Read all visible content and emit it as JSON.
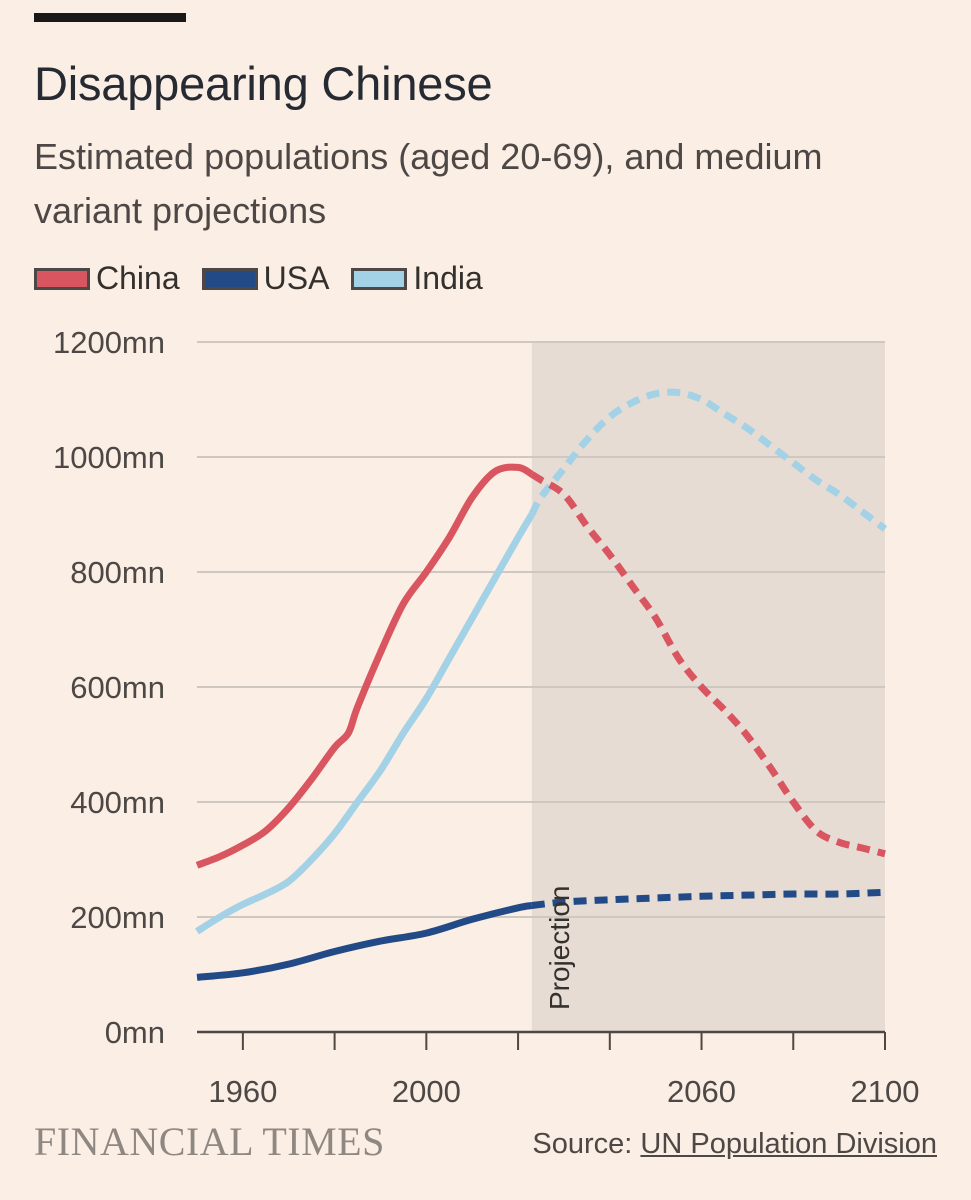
{
  "header": {
    "title": "Disappearing Chinese",
    "subtitle": "Estimated populations (aged 20-69), and medium variant projections"
  },
  "footer": {
    "brand": "FINANCIAL TIMES",
    "source_prefix": "Source: ",
    "source_link": "UN Population Division"
  },
  "colors": {
    "background": "#fbeee4",
    "projection_shade": "#e6dcd4",
    "china": "#d9555f",
    "usa": "#224a86",
    "india": "#a3d1e6",
    "grid": "#cfc8c2",
    "axis": "#4d4845"
  },
  "chart_data": {
    "type": "line",
    "title": "Disappearing Chinese",
    "subtitle": "Estimated populations (aged 20-69), and medium variant projections",
    "xlabel": "",
    "ylabel": "",
    "xlim": [
      1950,
      2100
    ],
    "ylim": [
      0,
      1200
    ],
    "y_ticks": [
      0,
      200,
      400,
      600,
      800,
      1000,
      1200
    ],
    "y_tick_labels": [
      "0mn",
      "200mn",
      "400mn",
      "600mn",
      "800mn",
      "1000mn",
      "1200mn"
    ],
    "x_ticks": [
      1960,
      1980,
      2000,
      2020,
      2040,
      2060,
      2080,
      2100
    ],
    "x_tick_labels": [
      "1960",
      "",
      "2000",
      "",
      "",
      "2060",
      "",
      "2100"
    ],
    "projection_start": 2023,
    "projection_label": "Projection",
    "legend": [
      "China",
      "USA",
      "India"
    ],
    "legend_position": "top-left",
    "grid": true,
    "series": [
      {
        "name": "China",
        "color": "#d9555f",
        "x": [
          1950,
          1955,
          1960,
          1965,
          1970,
          1975,
          1980,
          1983,
          1985,
          1990,
          1995,
          2000,
          2005,
          2010,
          2015,
          2020,
          2023,
          2025,
          2030,
          2035,
          2040,
          2045,
          2050,
          2055,
          2060,
          2065,
          2070,
          2075,
          2080,
          2085,
          2090,
          2095,
          2100
        ],
        "values": [
          290,
          305,
          325,
          350,
          390,
          440,
          495,
          520,
          565,
          660,
          745,
          800,
          860,
          930,
          975,
          982,
          970,
          960,
          935,
          880,
          830,
          775,
          720,
          650,
          600,
          560,
          515,
          460,
          400,
          350,
          330,
          320,
          310
        ]
      },
      {
        "name": "USA",
        "color": "#224a86",
        "x": [
          1950,
          1960,
          1970,
          1980,
          1990,
          2000,
          2010,
          2020,
          2023,
          2030,
          2040,
          2050,
          2060,
          2070,
          2080,
          2090,
          2100
        ],
        "values": [
          95,
          103,
          118,
          140,
          158,
          172,
          196,
          216,
          220,
          226,
          230,
          233,
          236,
          238,
          240,
          240,
          243
        ]
      },
      {
        "name": "India",
        "color": "#a3d1e6",
        "x": [
          1950,
          1955,
          1960,
          1965,
          1970,
          1975,
          1980,
          1985,
          1990,
          1995,
          2000,
          2005,
          2010,
          2015,
          2020,
          2023,
          2025,
          2030,
          2035,
          2040,
          2045,
          2050,
          2055,
          2060,
          2065,
          2070,
          2075,
          2080,
          2085,
          2090,
          2095,
          2100
        ],
        "values": [
          175,
          200,
          222,
          240,
          262,
          300,
          345,
          400,
          455,
          520,
          580,
          650,
          720,
          790,
          860,
          900,
          930,
          980,
          1030,
          1070,
          1095,
          1110,
          1112,
          1100,
          1075,
          1050,
          1020,
          990,
          960,
          935,
          905,
          875
        ]
      }
    ]
  }
}
